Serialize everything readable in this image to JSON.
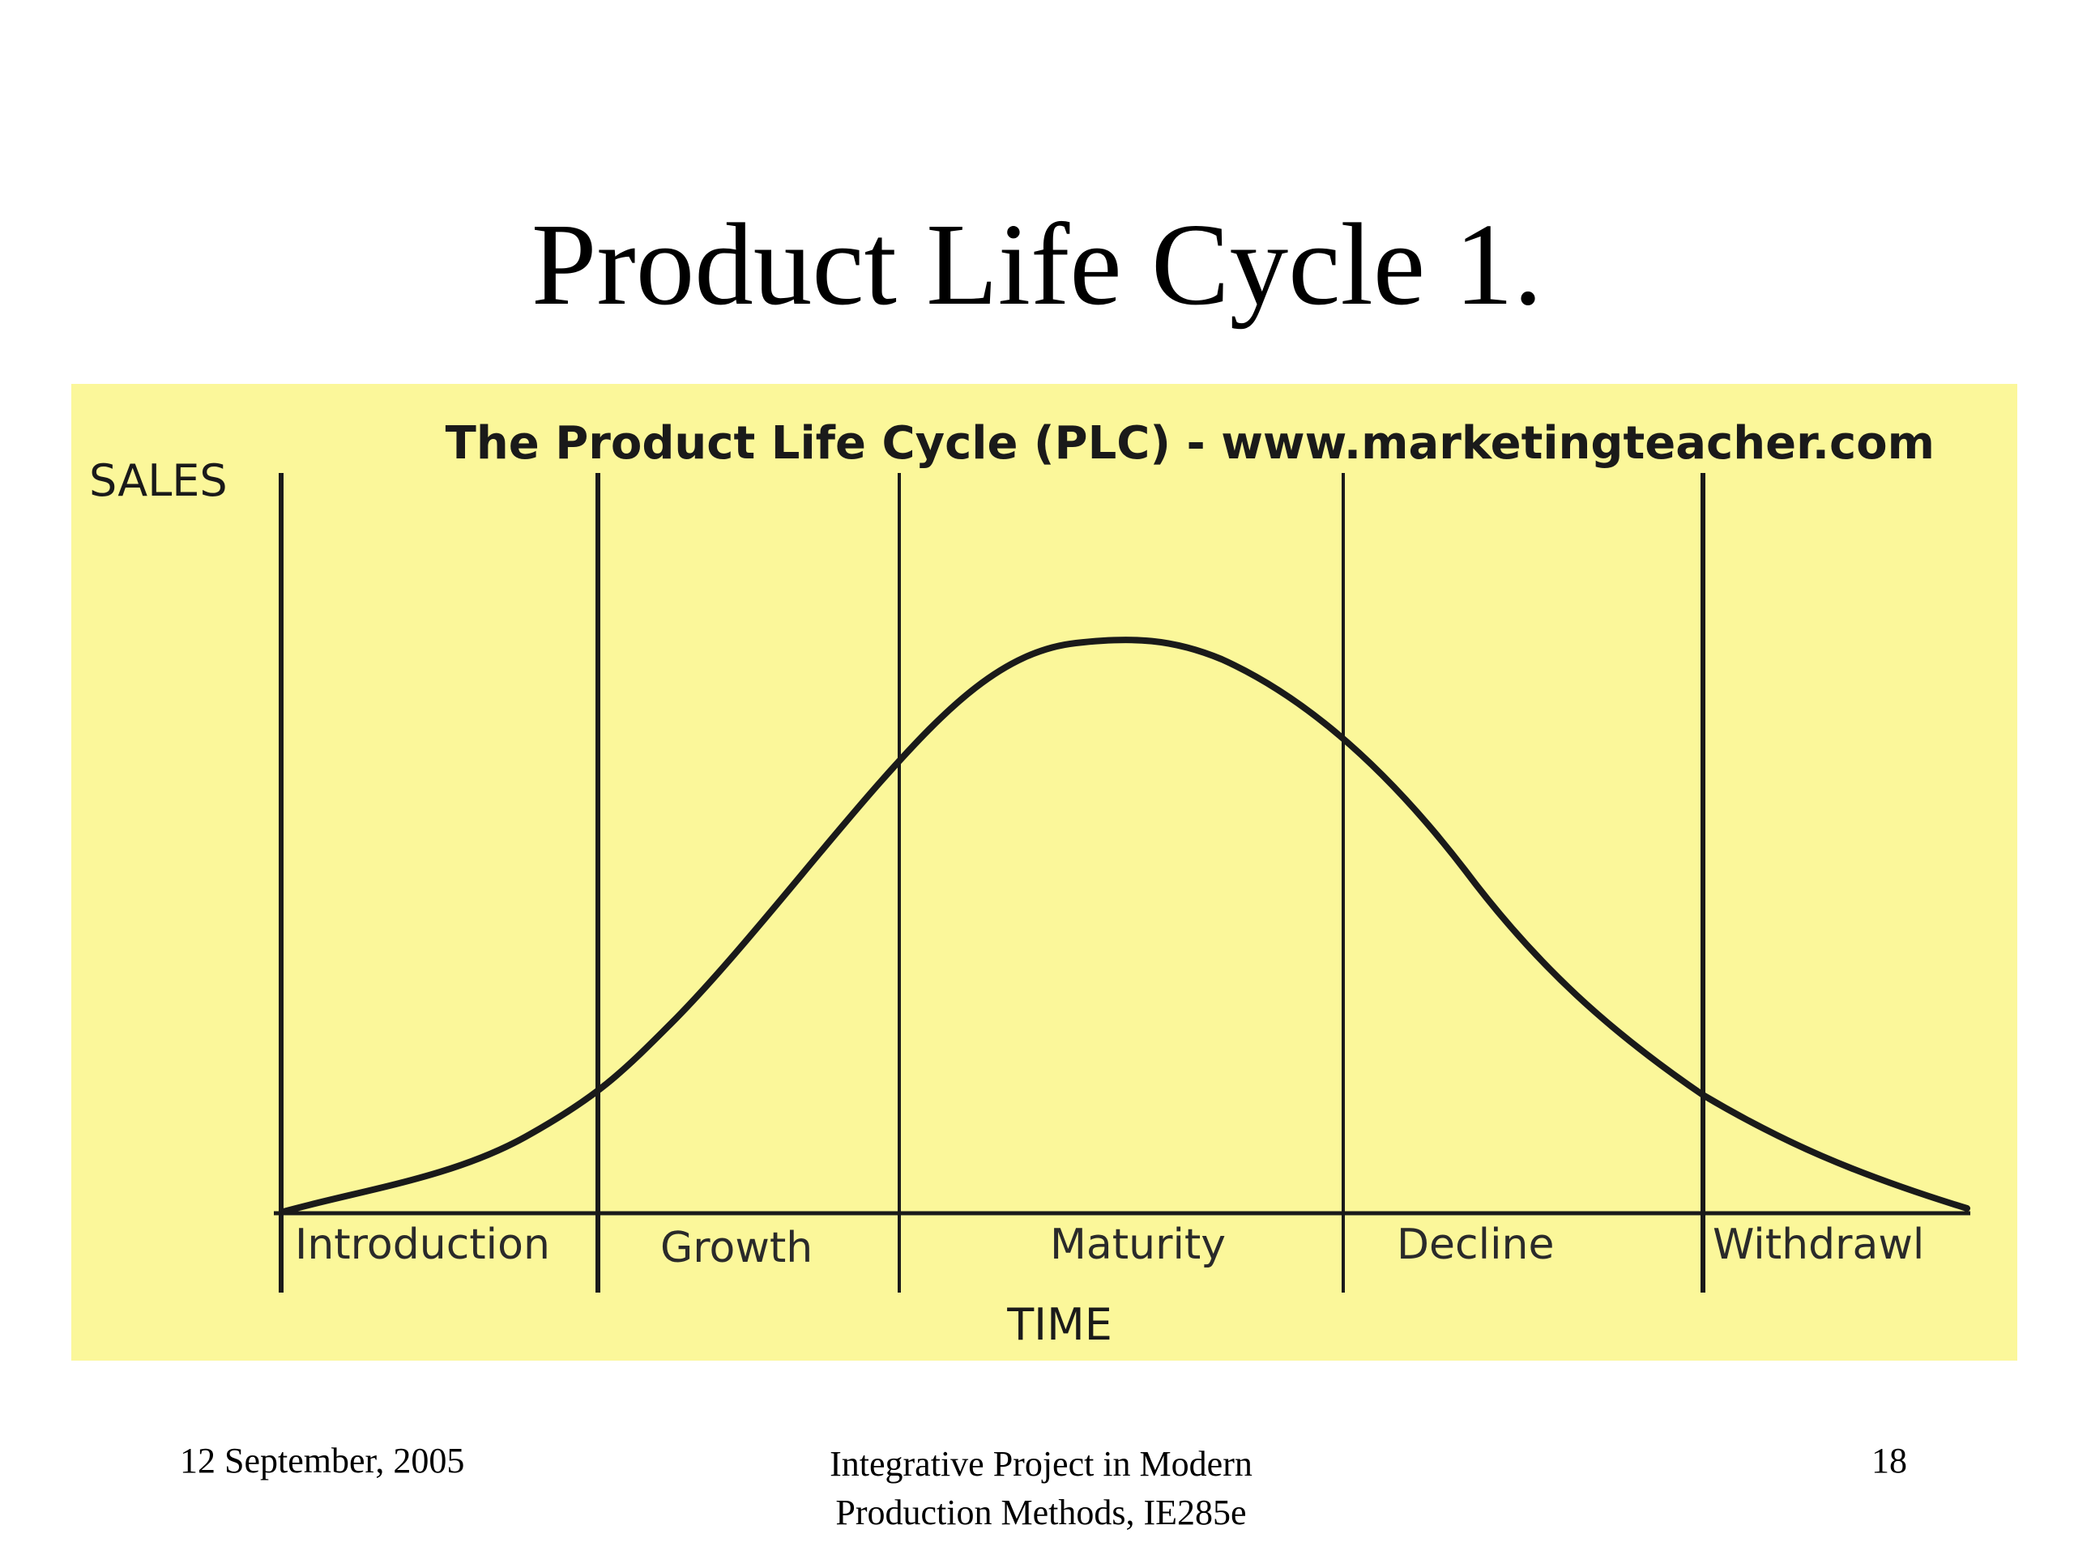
{
  "slide": {
    "title": "Product Life Cycle 1."
  },
  "diagram": {
    "heading": "The Product Life Cycle (PLC) - www.marketingteacher.com",
    "y_axis_label": "SALES",
    "x_axis_label": "TIME",
    "stages": [
      "Introduction",
      "Growth",
      "Maturity",
      "Decline",
      "Withdrawl"
    ],
    "background_color": "#fbf79a",
    "line_color": "#1a1a1a"
  },
  "footer": {
    "date": "12 September, 2005",
    "center_line1": "Integrative Project in Modern",
    "center_line2": "Production Methods, IE285e",
    "page_number": "18"
  }
}
